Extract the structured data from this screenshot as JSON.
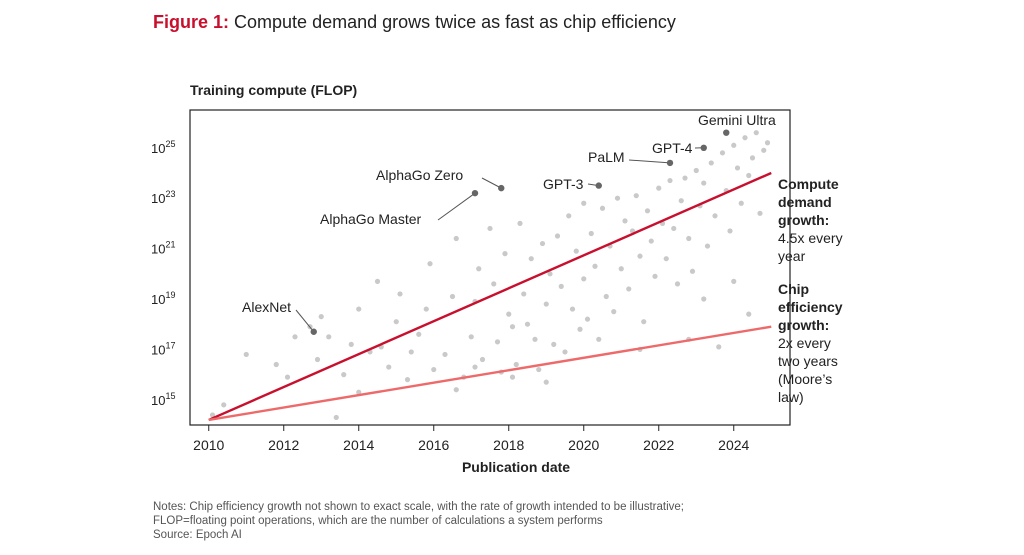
{
  "figure": {
    "number_label": "Figure 1:",
    "title": "Compute demand grows twice as fast as chip efficiency"
  },
  "notes": [
    "Notes: Chip efficiency growth not shown to exact scale, with the rate of growth intended to be illustrative;",
    "FLOP=floating point operations, which are the number of calculations a system performs",
    "Source: Epoch AI"
  ],
  "colors": {
    "demand_line": "#c8102e",
    "efficiency_line": "#ee6a6a",
    "scatter_point": "#c9c9c9",
    "highlight_point": "#666666",
    "axis": "#222222"
  },
  "chart_data": {
    "type": "scatter",
    "ylabel": "Training compute (FLOP)",
    "xlabel": "Publication date",
    "xlim": [
      2009.5,
      2025.5
    ],
    "ylim_log10": [
      14,
      26.5
    ],
    "y_scale": "log",
    "x_ticks": [
      2010,
      2012,
      2014,
      2016,
      2018,
      2020,
      2022,
      2024
    ],
    "y_ticks": [
      {
        "base": "10",
        "exp": "15",
        "log10": 15
      },
      {
        "base": "10",
        "exp": "17",
        "log10": 17
      },
      {
        "base": "10",
        "exp": "19",
        "log10": 19
      },
      {
        "base": "10",
        "exp": "21",
        "log10": 21
      },
      {
        "base": "10",
        "exp": "23",
        "log10": 23
      },
      {
        "base": "10",
        "exp": "25",
        "log10": 25
      }
    ],
    "grid": false,
    "trend_lines": [
      {
        "name": "Compute demand growth",
        "points": [
          [
            2010,
            14.2
          ],
          [
            2025,
            24.0
          ]
        ],
        "label_lines": [
          "Compute",
          "demand",
          "growth:",
          "4.5x every",
          "year"
        ],
        "label_bold_count": 3
      },
      {
        "name": "Chip efficiency growth",
        "points": [
          [
            2010,
            14.2
          ],
          [
            2025,
            17.9
          ]
        ],
        "label_lines": [
          "Chip",
          "efficiency",
          "growth:",
          "2x every",
          "two years",
          "(Moore’s",
          "law)"
        ],
        "label_bold_count": 3
      }
    ],
    "highlighted": [
      {
        "name": "AlexNet",
        "x": 2012.8,
        "y": 17.7
      },
      {
        "name": "AlphaGo Master",
        "x": 2017.1,
        "y": 23.2
      },
      {
        "name": "AlphaGo Zero",
        "x": 2017.8,
        "y": 23.4
      },
      {
        "name": "GPT-3",
        "x": 2020.4,
        "y": 23.5
      },
      {
        "name": "PaLM",
        "x": 2022.3,
        "y": 24.4
      },
      {
        "name": "GPT-4",
        "x": 2023.2,
        "y": 25.0
      },
      {
        "name": "Gemini Ultra",
        "x": 2023.8,
        "y": 25.6
      }
    ],
    "points": [
      [
        2010.1,
        14.4
      ],
      [
        2010.4,
        14.8
      ],
      [
        2011.0,
        16.8
      ],
      [
        2011.8,
        16.4
      ],
      [
        2012.1,
        15.9
      ],
      [
        2012.3,
        17.5
      ],
      [
        2012.7,
        17.9
      ],
      [
        2012.9,
        16.6
      ],
      [
        2013.0,
        18.3
      ],
      [
        2013.2,
        17.5
      ],
      [
        2013.4,
        14.3
      ],
      [
        2013.6,
        16.0
      ],
      [
        2013.8,
        17.2
      ],
      [
        2014.0,
        18.6
      ],
      [
        2014.0,
        15.3
      ],
      [
        2014.3,
        16.9
      ],
      [
        2014.5,
        19.7
      ],
      [
        2014.6,
        17.1
      ],
      [
        2014.8,
        16.3
      ],
      [
        2015.0,
        18.1
      ],
      [
        2015.1,
        19.2
      ],
      [
        2015.3,
        15.8
      ],
      [
        2015.4,
        16.9
      ],
      [
        2015.6,
        17.6
      ],
      [
        2015.8,
        18.6
      ],
      [
        2015.9,
        20.4
      ],
      [
        2016.0,
        16.2
      ],
      [
        2016.3,
        16.8
      ],
      [
        2016.5,
        19.1
      ],
      [
        2016.6,
        21.4
      ],
      [
        2016.8,
        15.9
      ],
      [
        2017.0,
        17.5
      ],
      [
        2017.1,
        18.9
      ],
      [
        2017.2,
        20.2
      ],
      [
        2017.3,
        16.6
      ],
      [
        2017.5,
        21.8
      ],
      [
        2017.6,
        19.6
      ],
      [
        2017.7,
        17.3
      ],
      [
        2017.8,
        16.1
      ],
      [
        2017.9,
        20.8
      ],
      [
        2018.0,
        18.4
      ],
      [
        2018.1,
        17.9
      ],
      [
        2018.2,
        16.4
      ],
      [
        2018.3,
        22.0
      ],
      [
        2018.4,
        19.2
      ],
      [
        2018.5,
        18.0
      ],
      [
        2018.6,
        20.6
      ],
      [
        2018.7,
        17.4
      ],
      [
        2018.8,
        16.2
      ],
      [
        2018.9,
        21.2
      ],
      [
        2019.0,
        18.8
      ],
      [
        2019.1,
        20.0
      ],
      [
        2019.2,
        17.2
      ],
      [
        2019.3,
        21.5
      ],
      [
        2019.4,
        19.5
      ],
      [
        2019.5,
        16.9
      ],
      [
        2019.6,
        22.3
      ],
      [
        2019.7,
        18.6
      ],
      [
        2019.8,
        20.9
      ],
      [
        2019.9,
        17.8
      ],
      [
        2020.0,
        22.8
      ],
      [
        2020.0,
        19.8
      ],
      [
        2020.1,
        18.2
      ],
      [
        2020.2,
        21.6
      ],
      [
        2020.3,
        20.3
      ],
      [
        2020.4,
        17.4
      ],
      [
        2020.5,
        22.6
      ],
      [
        2020.6,
        19.1
      ],
      [
        2020.7,
        21.1
      ],
      [
        2020.8,
        18.5
      ],
      [
        2020.9,
        23.0
      ],
      [
        2021.0,
        20.2
      ],
      [
        2021.1,
        22.1
      ],
      [
        2021.2,
        19.4
      ],
      [
        2021.3,
        21.7
      ],
      [
        2021.4,
        23.1
      ],
      [
        2021.5,
        20.7
      ],
      [
        2021.6,
        18.1
      ],
      [
        2021.7,
        22.5
      ],
      [
        2021.8,
        21.3
      ],
      [
        2021.9,
        19.9
      ],
      [
        2022.0,
        23.4
      ],
      [
        2022.1,
        22.0
      ],
      [
        2022.2,
        20.6
      ],
      [
        2022.3,
        23.7
      ],
      [
        2022.4,
        21.8
      ],
      [
        2022.5,
        19.6
      ],
      [
        2022.6,
        22.9
      ],
      [
        2022.7,
        23.8
      ],
      [
        2022.8,
        21.4
      ],
      [
        2022.9,
        20.1
      ],
      [
        2023.0,
        24.1
      ],
      [
        2023.1,
        22.7
      ],
      [
        2023.2,
        23.6
      ],
      [
        2023.3,
        21.1
      ],
      [
        2023.4,
        24.4
      ],
      [
        2023.5,
        22.3
      ],
      [
        2023.6,
        17.1
      ],
      [
        2023.7,
        24.8
      ],
      [
        2023.8,
        23.3
      ],
      [
        2023.9,
        21.7
      ],
      [
        2024.0,
        25.1
      ],
      [
        2024.1,
        24.2
      ],
      [
        2024.2,
        22.8
      ],
      [
        2024.3,
        25.4
      ],
      [
        2024.4,
        23.9
      ],
      [
        2024.5,
        24.6
      ],
      [
        2024.6,
        25.6
      ],
      [
        2024.7,
        22.4
      ],
      [
        2024.8,
        24.9
      ],
      [
        2024.9,
        25.2
      ],
      [
        2024.0,
        19.7
      ],
      [
        2023.2,
        19.0
      ],
      [
        2024.4,
        18.4
      ],
      [
        2019.0,
        15.7
      ],
      [
        2018.1,
        15.9
      ],
      [
        2017.1,
        16.3
      ],
      [
        2016.6,
        15.4
      ],
      [
        2021.5,
        17.0
      ],
      [
        2022.8,
        17.4
      ]
    ]
  }
}
